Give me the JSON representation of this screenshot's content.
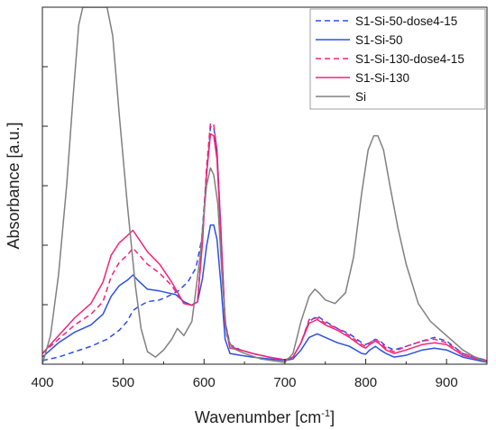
{
  "chart_data": {
    "type": "line",
    "title": "",
    "xlabel": "Wavenumber [cm",
    "xlabel_sup": "-1",
    "xlabel_end": "]",
    "ylabel": "Absorbance [a.u.]",
    "xlim": [
      400,
      950
    ],
    "ylim": [
      0,
      1.0
    ],
    "xticks": [
      400,
      500,
      600,
      700,
      800,
      900
    ],
    "grid": false,
    "legend_position": "top-right",
    "series": [
      {
        "name": "S1-Si-50-dose4-15",
        "color": "#2b50e6",
        "dash": "dashed",
        "points": [
          [
            400,
            0.01
          ],
          [
            420,
            0.02
          ],
          [
            440,
            0.035
          ],
          [
            460,
            0.05
          ],
          [
            480,
            0.07
          ],
          [
            495,
            0.095
          ],
          [
            505,
            0.12
          ],
          [
            512,
            0.15
          ],
          [
            518,
            0.16
          ],
          [
            530,
            0.175
          ],
          [
            545,
            0.18
          ],
          [
            555,
            0.19
          ],
          [
            568,
            0.205
          ],
          [
            580,
            0.23
          ],
          [
            590,
            0.27
          ],
          [
            597,
            0.35
          ],
          [
            603,
            0.53
          ],
          [
            608,
            0.665
          ],
          [
            612,
            0.665
          ],
          [
            616,
            0.6
          ],
          [
            621,
            0.37
          ],
          [
            626,
            0.12
          ],
          [
            632,
            0.055
          ],
          [
            645,
            0.04
          ],
          [
            660,
            0.03
          ],
          [
            680,
            0.02
          ],
          [
            700,
            0.012
          ],
          [
            710,
            0.02
          ],
          [
            720,
            0.06
          ],
          [
            730,
            0.12
          ],
          [
            740,
            0.135
          ],
          [
            750,
            0.12
          ],
          [
            765,
            0.1
          ],
          [
            780,
            0.085
          ],
          [
            795,
            0.06
          ],
          [
            800,
            0.055
          ],
          [
            805,
            0.06
          ],
          [
            812,
            0.07
          ],
          [
            818,
            0.065
          ],
          [
            825,
            0.05
          ],
          [
            835,
            0.04
          ],
          [
            850,
            0.05
          ],
          [
            870,
            0.065
          ],
          [
            885,
            0.075
          ],
          [
            900,
            0.065
          ],
          [
            920,
            0.03
          ],
          [
            950,
            0.01
          ]
        ]
      },
      {
        "name": "S1-Si-50",
        "color": "#2b50e6",
        "dash": "solid",
        "points": [
          [
            400,
            0.02
          ],
          [
            420,
            0.06
          ],
          [
            440,
            0.09
          ],
          [
            460,
            0.11
          ],
          [
            475,
            0.14
          ],
          [
            485,
            0.19
          ],
          [
            495,
            0.22
          ],
          [
            505,
            0.235
          ],
          [
            512,
            0.25
          ],
          [
            518,
            0.235
          ],
          [
            530,
            0.21
          ],
          [
            545,
            0.205
          ],
          [
            555,
            0.2
          ],
          [
            565,
            0.195
          ],
          [
            575,
            0.175
          ],
          [
            585,
            0.165
          ],
          [
            592,
            0.175
          ],
          [
            598,
            0.24
          ],
          [
            603,
            0.33
          ],
          [
            608,
            0.39
          ],
          [
            612,
            0.39
          ],
          [
            616,
            0.35
          ],
          [
            621,
            0.22
          ],
          [
            626,
            0.07
          ],
          [
            632,
            0.03
          ],
          [
            645,
            0.025
          ],
          [
            660,
            0.02
          ],
          [
            680,
            0.015
          ],
          [
            700,
            0.01
          ],
          [
            710,
            0.015
          ],
          [
            720,
            0.04
          ],
          [
            730,
            0.075
          ],
          [
            740,
            0.085
          ],
          [
            750,
            0.075
          ],
          [
            765,
            0.06
          ],
          [
            780,
            0.05
          ],
          [
            795,
            0.03
          ],
          [
            800,
            0.028
          ],
          [
            805,
            0.04
          ],
          [
            812,
            0.05
          ],
          [
            818,
            0.04
          ],
          [
            825,
            0.03
          ],
          [
            835,
            0.02
          ],
          [
            850,
            0.025
          ],
          [
            870,
            0.04
          ],
          [
            885,
            0.045
          ],
          [
            900,
            0.04
          ],
          [
            920,
            0.02
          ],
          [
            950,
            0.005
          ]
        ]
      },
      {
        "name": "S1-Si-130-dose4-15",
        "color": "#f0247a",
        "dash": "dashed",
        "points": [
          [
            400,
            0.03
          ],
          [
            420,
            0.07
          ],
          [
            440,
            0.11
          ],
          [
            460,
            0.14
          ],
          [
            475,
            0.175
          ],
          [
            485,
            0.245
          ],
          [
            495,
            0.285
          ],
          [
            505,
            0.305
          ],
          [
            512,
            0.325
          ],
          [
            518,
            0.31
          ],
          [
            530,
            0.28
          ],
          [
            545,
            0.255
          ],
          [
            560,
            0.22
          ],
          [
            575,
            0.17
          ],
          [
            585,
            0.165
          ],
          [
            592,
            0.18
          ],
          [
            598,
            0.35
          ],
          [
            603,
            0.55
          ],
          [
            608,
            0.675
          ],
          [
            612,
            0.67
          ],
          [
            616,
            0.6
          ],
          [
            621,
            0.37
          ],
          [
            626,
            0.12
          ],
          [
            632,
            0.05
          ],
          [
            645,
            0.04
          ],
          [
            660,
            0.03
          ],
          [
            680,
            0.02
          ],
          [
            700,
            0.012
          ],
          [
            710,
            0.02
          ],
          [
            720,
            0.06
          ],
          [
            730,
            0.125
          ],
          [
            740,
            0.13
          ],
          [
            750,
            0.115
          ],
          [
            765,
            0.1
          ],
          [
            780,
            0.08
          ],
          [
            795,
            0.055
          ],
          [
            800,
            0.05
          ],
          [
            805,
            0.06
          ],
          [
            812,
            0.07
          ],
          [
            818,
            0.06
          ],
          [
            825,
            0.045
          ],
          [
            835,
            0.035
          ],
          [
            850,
            0.05
          ],
          [
            870,
            0.065
          ],
          [
            885,
            0.07
          ],
          [
            900,
            0.06
          ],
          [
            920,
            0.03
          ],
          [
            950,
            0.01
          ]
        ]
      },
      {
        "name": "S1-Si-130",
        "color": "#f0247a",
        "dash": "solid",
        "points": [
          [
            400,
            0.03
          ],
          [
            420,
            0.08
          ],
          [
            440,
            0.13
          ],
          [
            460,
            0.17
          ],
          [
            475,
            0.23
          ],
          [
            485,
            0.305
          ],
          [
            495,
            0.34
          ],
          [
            505,
            0.36
          ],
          [
            512,
            0.375
          ],
          [
            518,
            0.355
          ],
          [
            530,
            0.315
          ],
          [
            545,
            0.28
          ],
          [
            560,
            0.23
          ],
          [
            575,
            0.17
          ],
          [
            585,
            0.165
          ],
          [
            592,
            0.175
          ],
          [
            598,
            0.34
          ],
          [
            603,
            0.53
          ],
          [
            608,
            0.645
          ],
          [
            612,
            0.64
          ],
          [
            616,
            0.575
          ],
          [
            621,
            0.35
          ],
          [
            626,
            0.11
          ],
          [
            632,
            0.045
          ],
          [
            645,
            0.04
          ],
          [
            660,
            0.03
          ],
          [
            680,
            0.02
          ],
          [
            700,
            0.012
          ],
          [
            710,
            0.02
          ],
          [
            720,
            0.06
          ],
          [
            730,
            0.115
          ],
          [
            740,
            0.125
          ],
          [
            750,
            0.11
          ],
          [
            765,
            0.095
          ],
          [
            780,
            0.075
          ],
          [
            795,
            0.05
          ],
          [
            800,
            0.045
          ],
          [
            805,
            0.055
          ],
          [
            812,
            0.065
          ],
          [
            818,
            0.055
          ],
          [
            825,
            0.04
          ],
          [
            835,
            0.03
          ],
          [
            850,
            0.04
          ],
          [
            870,
            0.055
          ],
          [
            885,
            0.06
          ],
          [
            900,
            0.055
          ],
          [
            920,
            0.025
          ],
          [
            950,
            0.008
          ]
        ]
      },
      {
        "name": "Si",
        "color": "#808080",
        "dash": "solid",
        "points": [
          [
            400,
            0.0
          ],
          [
            410,
            0.08
          ],
          [
            420,
            0.25
          ],
          [
            430,
            0.5
          ],
          [
            438,
            0.75
          ],
          [
            445,
            0.95
          ],
          [
            450,
            1.0
          ],
          [
            480,
            1.0
          ],
          [
            487,
            0.92
          ],
          [
            495,
            0.7
          ],
          [
            505,
            0.45
          ],
          [
            515,
            0.22
          ],
          [
            522,
            0.1
          ],
          [
            530,
            0.035
          ],
          [
            540,
            0.02
          ],
          [
            550,
            0.04
          ],
          [
            560,
            0.07
          ],
          [
            567,
            0.1
          ],
          [
            575,
            0.08
          ],
          [
            585,
            0.12
          ],
          [
            595,
            0.3
          ],
          [
            603,
            0.5
          ],
          [
            608,
            0.55
          ],
          [
            612,
            0.53
          ],
          [
            617,
            0.45
          ],
          [
            623,
            0.22
          ],
          [
            628,
            0.08
          ],
          [
            635,
            0.045
          ],
          [
            650,
            0.03
          ],
          [
            670,
            0.015
          ],
          [
            690,
            0.008
          ],
          [
            700,
            0.005
          ],
          [
            710,
            0.03
          ],
          [
            720,
            0.12
          ],
          [
            730,
            0.19
          ],
          [
            737,
            0.21
          ],
          [
            742,
            0.2
          ],
          [
            750,
            0.18
          ],
          [
            762,
            0.17
          ],
          [
            775,
            0.2
          ],
          [
            785,
            0.3
          ],
          [
            795,
            0.48
          ],
          [
            803,
            0.6
          ],
          [
            810,
            0.64
          ],
          [
            815,
            0.64
          ],
          [
            822,
            0.6
          ],
          [
            830,
            0.5
          ],
          [
            840,
            0.38
          ],
          [
            850,
            0.28
          ],
          [
            865,
            0.17
          ],
          [
            880,
            0.12
          ],
          [
            890,
            0.1
          ],
          [
            905,
            0.07
          ],
          [
            920,
            0.04
          ],
          [
            935,
            0.02
          ],
          [
            950,
            0.005
          ]
        ]
      }
    ]
  }
}
